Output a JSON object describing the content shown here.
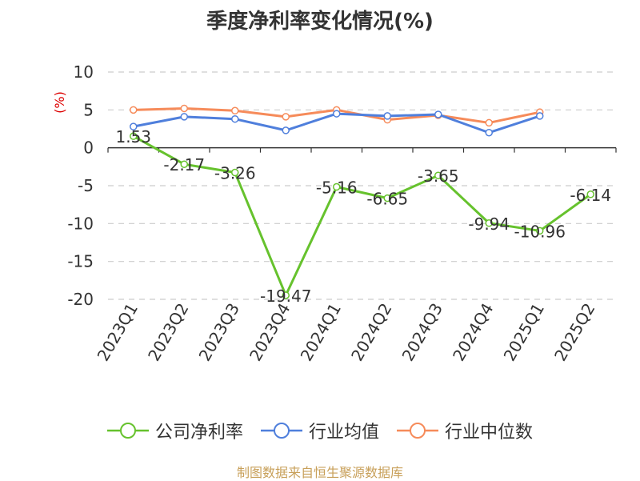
{
  "chart_data": {
    "type": "line",
    "title": "季度净利率变化情况(%)",
    "ylabel": "(%)",
    "xlabel": "",
    "categories": [
      "2023Q1",
      "2023Q2",
      "2023Q3",
      "2023Q4",
      "2024Q1",
      "2024Q2",
      "2024Q3",
      "2024Q4",
      "2025Q1",
      "2025Q2"
    ],
    "ylim": [
      -20,
      10
    ],
    "yticks": [
      10,
      5,
      0,
      -5,
      -10,
      -15,
      -20
    ],
    "ytick_labels": [
      "10",
      "5",
      "0",
      "-5",
      "-10",
      "-15",
      "-20"
    ],
    "grid": true,
    "legend_position": "bottom",
    "series": [
      {
        "name": "公司净利率",
        "color": "#66c22d",
        "values": [
          1.53,
          -2.17,
          -3.26,
          -19.47,
          -5.16,
          -6.65,
          -3.65,
          -9.94,
          -10.96,
          -6.14
        ],
        "labels": [
          "1.53",
          "-2.17",
          "-3.26",
          "-19.47",
          "-5.16",
          "-6.65",
          "-3.65",
          "-9.94",
          "-10.96",
          "-6.14"
        ]
      },
      {
        "name": "行业均值",
        "color": "#4f7fdc",
        "values": [
          2.8,
          4.1,
          3.8,
          2.3,
          4.5,
          4.2,
          4.4,
          2.0,
          4.2,
          null
        ]
      },
      {
        "name": "行业中位数",
        "color": "#f68b5a",
        "values": [
          5.0,
          5.2,
          4.9,
          4.1,
          5.0,
          3.7,
          4.3,
          3.3,
          4.7,
          null
        ]
      }
    ]
  },
  "source": "制图数据来自恒生聚源数据库"
}
